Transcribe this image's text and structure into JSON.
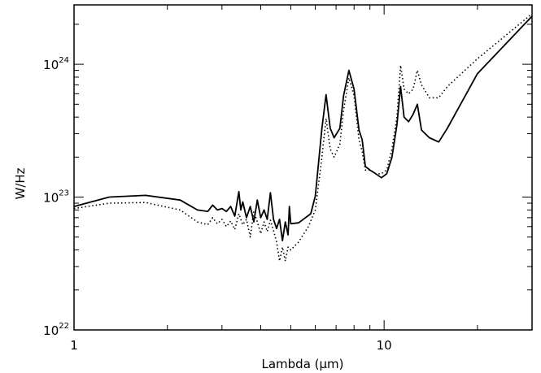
{
  "chart_data": {
    "type": "line",
    "title": "",
    "xlabel": "Lambda (μm)",
    "ylabel": "W/Hz",
    "xscale": "log",
    "yscale": "log",
    "xlim": [
      1,
      30
    ],
    "ylim": [
      1e+22,
      2.8e+24
    ],
    "grid": false,
    "x_ticks": [
      {
        "value": 1,
        "label": "1"
      },
      {
        "value": 10,
        "label": "10"
      }
    ],
    "y_ticks": [
      {
        "value": 1e+22,
        "base": "10",
        "exp": "22"
      },
      {
        "value": 1e+23,
        "base": "10",
        "exp": "23"
      },
      {
        "value": 1e+24,
        "base": "10",
        "exp": "24"
      }
    ],
    "series": [
      {
        "style": "solid",
        "color": "#000000",
        "points": [
          [
            1.0,
            8.5e+22
          ],
          [
            1.3,
            1e+23
          ],
          [
            1.7,
            1.03e+23
          ],
          [
            2.2,
            9.5e+22
          ],
          [
            2.5,
            8e+22
          ],
          [
            2.7,
            7.8e+22
          ],
          [
            2.8,
            8.7e+22
          ],
          [
            2.9,
            8e+22
          ],
          [
            3.0,
            8.2e+22
          ],
          [
            3.1,
            7.8e+22
          ],
          [
            3.2,
            8.5e+22
          ],
          [
            3.3,
            7.2e+22
          ],
          [
            3.4,
            1.1e+23
          ],
          [
            3.45,
            8e+22
          ],
          [
            3.5,
            9.2e+22
          ],
          [
            3.6,
            7e+22
          ],
          [
            3.7,
            8.5e+22
          ],
          [
            3.8,
            6.5e+22
          ],
          [
            3.9,
            9.5e+22
          ],
          [
            4.0,
            7e+22
          ],
          [
            4.1,
            8e+22
          ],
          [
            4.2,
            6.8e+22
          ],
          [
            4.3,
            1.08e+23
          ],
          [
            4.4,
            6.8e+22
          ],
          [
            4.5,
            5.8e+22
          ],
          [
            4.6,
            6.8e+22
          ],
          [
            4.7,
            4.7e+22
          ],
          [
            4.8,
            6.5e+22
          ],
          [
            4.9,
            5.2e+22
          ],
          [
            4.95,
            8.5e+22
          ],
          [
            5.0,
            6.3e+22
          ],
          [
            5.3,
            6.4e+22
          ],
          [
            5.8,
            7.5e+22
          ],
          [
            6.0,
            1.02e+23
          ],
          [
            6.3,
            3.3e+23
          ],
          [
            6.5,
            5.9e+23
          ],
          [
            6.7,
            3.3e+23
          ],
          [
            6.9,
            2.8e+23
          ],
          [
            7.2,
            3.3e+23
          ],
          [
            7.4,
            5.8e+23
          ],
          [
            7.7,
            9e+23
          ],
          [
            8.0,
            6.5e+23
          ],
          [
            8.3,
            3.2e+23
          ],
          [
            8.5,
            2.7e+23
          ],
          [
            8.7,
            1.7e+23
          ],
          [
            9.0,
            1.6e+23
          ],
          [
            9.4,
            1.5e+23
          ],
          [
            9.8,
            1.4e+23
          ],
          [
            10.2,
            1.5e+23
          ],
          [
            10.6,
            2e+23
          ],
          [
            11.0,
            3.5e+23
          ],
          [
            11.3,
            6.8e+23
          ],
          [
            11.6,
            4e+23
          ],
          [
            12.0,
            3.7e+23
          ],
          [
            12.4,
            4.2e+23
          ],
          [
            12.8,
            5e+23
          ],
          [
            13.2,
            3.2e+23
          ],
          [
            14.0,
            2.8e+23
          ],
          [
            15.0,
            2.6e+23
          ],
          [
            16.0,
            3.3e+23
          ],
          [
            20.0,
            8.5e+23
          ],
          [
            30.0,
            2.3e+24
          ]
        ]
      },
      {
        "style": "dotted",
        "color": "#000000",
        "points": [
          [
            1.0,
            8.2e+22
          ],
          [
            1.3,
            9e+22
          ],
          [
            1.7,
            9.1e+22
          ],
          [
            2.2,
            8e+22
          ],
          [
            2.5,
            6.5e+22
          ],
          [
            2.7,
            6.2e+22
          ],
          [
            2.8,
            7e+22
          ],
          [
            2.9,
            6.3e+22
          ],
          [
            3.0,
            6.8e+22
          ],
          [
            3.1,
            6e+22
          ],
          [
            3.2,
            6.6e+22
          ],
          [
            3.3,
            5.7e+22
          ],
          [
            3.4,
            7.5e+22
          ],
          [
            3.5,
            6.2e+22
          ],
          [
            3.6,
            6.8e+22
          ],
          [
            3.7,
            5e+22
          ],
          [
            3.8,
            7.8e+22
          ],
          [
            3.9,
            6.5e+22
          ],
          [
            4.0,
            5.3e+22
          ],
          [
            4.1,
            6.5e+22
          ],
          [
            4.2,
            5.5e+22
          ],
          [
            4.3,
            6.7e+22
          ],
          [
            4.4,
            5.6e+22
          ],
          [
            4.5,
            4.6e+22
          ],
          [
            4.6,
            3.3e+22
          ],
          [
            4.7,
            4.2e+22
          ],
          [
            4.8,
            3.3e+22
          ],
          [
            4.9,
            4.2e+22
          ],
          [
            5.0,
            4e+22
          ],
          [
            5.3,
            4.6e+22
          ],
          [
            5.7,
            6e+22
          ],
          [
            6.0,
            8e+22
          ],
          [
            6.3,
            2e+23
          ],
          [
            6.5,
            3.9e+23
          ],
          [
            6.7,
            2.3e+23
          ],
          [
            6.9,
            2e+23
          ],
          [
            7.2,
            2.5e+23
          ],
          [
            7.4,
            4.5e+23
          ],
          [
            7.7,
            7.9e+23
          ],
          [
            8.0,
            5.8e+23
          ],
          [
            8.3,
            2.7e+23
          ],
          [
            8.5,
            2.2e+23
          ],
          [
            8.7,
            1.6e+23
          ],
          [
            9.0,
            1.6e+23
          ],
          [
            9.4,
            1.5e+23
          ],
          [
            9.8,
            1.5e+23
          ],
          [
            10.2,
            1.6e+23
          ],
          [
            10.6,
            2.3e+23
          ],
          [
            11.0,
            4e+23
          ],
          [
            11.3,
            9.8e+23
          ],
          [
            11.6,
            6.5e+23
          ],
          [
            12.0,
            6e+23
          ],
          [
            12.4,
            6.5e+23
          ],
          [
            12.8,
            9e+23
          ],
          [
            13.2,
            7e+23
          ],
          [
            14.0,
            5.6e+23
          ],
          [
            15.0,
            5.6e+23
          ],
          [
            16.0,
            6.8e+23
          ],
          [
            20.0,
            1.1e+24
          ],
          [
            30.0,
            2.4e+24
          ]
        ]
      }
    ]
  }
}
